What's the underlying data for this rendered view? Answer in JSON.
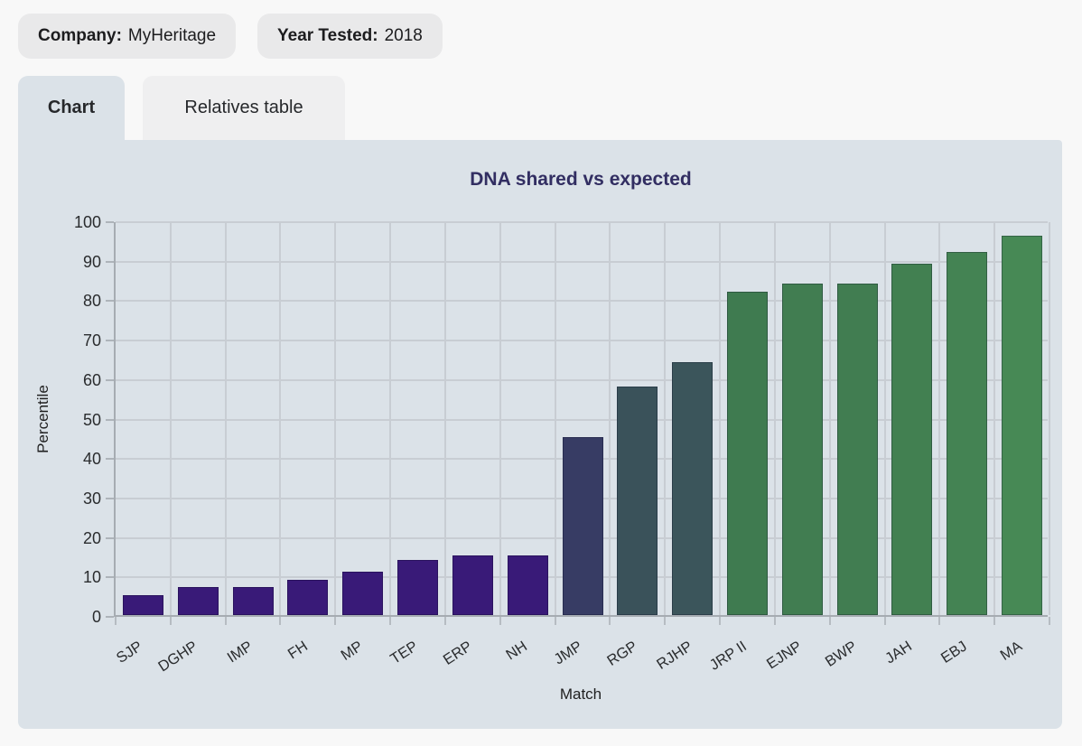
{
  "filters": {
    "company_label": "Company:",
    "company_value": "MyHeritage",
    "year_label": "Year Tested:",
    "year_value": "2018"
  },
  "tabs": [
    {
      "label": "Chart",
      "active": true
    },
    {
      "label": "Relatives table",
      "active": false
    }
  ],
  "chart_data": {
    "type": "bar",
    "title": "DNA shared vs expected",
    "xlabel": "Match",
    "ylabel": "Percentile",
    "ylim": [
      0,
      100
    ],
    "ytick_step": 10,
    "grid": true,
    "legend": "none",
    "categories": [
      "SJP",
      "DGHP",
      "IMP",
      "FH",
      "MP",
      "TEP",
      "ERP",
      "NH",
      "JMP",
      "RGP",
      "RJHP",
      "JRP II",
      "EJNP",
      "BWP",
      "JAH",
      "EBJ",
      "MA"
    ],
    "values": [
      5,
      7,
      7,
      9,
      11,
      14,
      15,
      15,
      45,
      58,
      64,
      82,
      84,
      84,
      89,
      92,
      96
    ],
    "bar_colors": [
      "#391a78",
      "#391a78",
      "#391a78",
      "#391a78",
      "#391a78",
      "#391a78",
      "#391a78",
      "#391a78",
      "#373c64",
      "#3a525a",
      "#3b555b",
      "#3f7b50",
      "#417d51",
      "#417d51",
      "#428051",
      "#448353",
      "#478955"
    ]
  },
  "theme": {
    "page_bg": "#f8f8f8",
    "chip_bg": "#e9e9ea",
    "panel_bg": "#dbe2e8",
    "inactive_tab_bg": "#efeff0",
    "title_color": "#322e62",
    "grid_color": "#c8cdd3",
    "axis_line_color": "#a6acb2",
    "tick_text_color": "#2a2c2e"
  }
}
